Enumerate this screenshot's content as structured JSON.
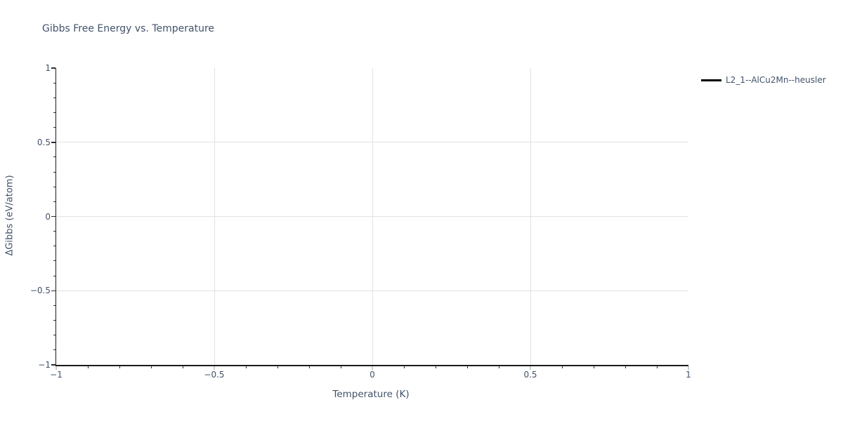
{
  "chart_data": {
    "type": "line",
    "title": "Gibbs Free Energy vs. Temperature",
    "xlabel": "Temperature (K)",
    "ylabel": "ΔGibbs (eV/atom)",
    "xlim": [
      -1,
      1
    ],
    "ylim": [
      -1,
      1
    ],
    "xticks": [
      -1,
      -0.5,
      0,
      0.5,
      1
    ],
    "xtick_labels": [
      "−1",
      "−0.5",
      "0",
      "0.5",
      "1"
    ],
    "yticks": [
      -1,
      -0.5,
      0,
      0.5,
      1
    ],
    "ytick_labels": [
      "−1",
      "−0.5",
      "0",
      "0.5",
      "1"
    ],
    "minor_tick_step": 0.1,
    "grid": true,
    "legend": {
      "position": "outside-top-right",
      "entries": [
        {
          "label": "L2_1--AlCu2Mn--heusler",
          "color": "#000000",
          "marker": "line"
        }
      ]
    },
    "series": [
      {
        "name": "L2_1--AlCu2Mn--heusler",
        "color": "#000000",
        "x": [],
        "y": []
      }
    ],
    "colors": {
      "text": "#42526b",
      "axis_line": "#1a1a1a",
      "grid_line": "#e2e2e2",
      "x_major_tick": "#cccccc",
      "minor_tick": "#2e2e2e",
      "background": "#ffffff"
    }
  }
}
